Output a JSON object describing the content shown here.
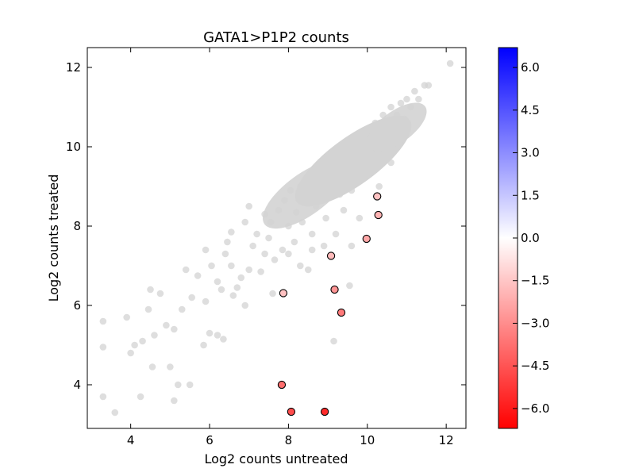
{
  "chart_data": {
    "type": "scatter",
    "title": "GATA1>P1P2 counts",
    "xlabel": "Log2 counts untreated",
    "ylabel": "Log2 counts treated",
    "xlim": [
      2.9,
      12.5
    ],
    "ylim": [
      2.9,
      12.5
    ],
    "xticks": [
      4,
      6,
      8,
      10,
      12
    ],
    "yticks": [
      4,
      6,
      8,
      10,
      12
    ],
    "grid": false,
    "background_color": "#d3d3d3",
    "background_points": [
      [
        3.3,
        5.6
      ],
      [
        3.3,
        4.95
      ],
      [
        3.3,
        3.7
      ],
      [
        3.6,
        3.3
      ],
      [
        3.9,
        5.7
      ],
      [
        4.0,
        4.8
      ],
      [
        4.1,
        5.0
      ],
      [
        4.25,
        3.7
      ],
      [
        4.3,
        5.1
      ],
      [
        4.45,
        5.9
      ],
      [
        4.5,
        6.4
      ],
      [
        4.55,
        4.45
      ],
      [
        4.6,
        5.25
      ],
      [
        4.75,
        6.3
      ],
      [
        4.9,
        5.5
      ],
      [
        5.1,
        5.4
      ],
      [
        5.0,
        4.45
      ],
      [
        5.1,
        3.6
      ],
      [
        5.2,
        4.0
      ],
      [
        5.3,
        5.9
      ],
      [
        5.4,
        6.9
      ],
      [
        5.5,
        4.0
      ],
      [
        5.55,
        6.2
      ],
      [
        5.7,
        6.75
      ],
      [
        5.85,
        5.0
      ],
      [
        5.9,
        6.1
      ],
      [
        6.0,
        5.3
      ],
      [
        6.05,
        7.0
      ],
      [
        6.2,
        5.25
      ],
      [
        6.3,
        6.4
      ],
      [
        6.35,
        5.15
      ],
      [
        6.45,
        7.6
      ],
      [
        6.55,
        7.0
      ],
      [
        6.55,
        7.85
      ],
      [
        6.6,
        6.25
      ],
      [
        6.7,
        6.45
      ],
      [
        6.8,
        6.7
      ],
      [
        6.9,
        6.0
      ],
      [
        7.0,
        6.9
      ],
      [
        7.1,
        7.5
      ],
      [
        7.2,
        7.8
      ],
      [
        7.3,
        6.85
      ],
      [
        7.4,
        7.3
      ],
      [
        7.5,
        7.7
      ],
      [
        7.55,
        8.1
      ],
      [
        7.65,
        7.15
      ],
      [
        7.75,
        8.4
      ],
      [
        7.85,
        7.4
      ],
      [
        7.9,
        8.65
      ],
      [
        8.0,
        8.0
      ],
      [
        8.05,
        8.9
      ],
      [
        8.15,
        7.6
      ],
      [
        8.2,
        8.35
      ],
      [
        8.3,
        9.0
      ],
      [
        8.35,
        8.1
      ],
      [
        8.45,
        8.7
      ],
      [
        8.55,
        9.2
      ],
      [
        8.6,
        7.8
      ],
      [
        8.7,
        8.5
      ],
      [
        8.8,
        9.4
      ],
      [
        8.85,
        8.95
      ],
      [
        8.95,
        8.2
      ],
      [
        9.0,
        9.65
      ],
      [
        9.1,
        9.1
      ],
      [
        9.15,
        5.1
      ],
      [
        9.2,
        9.8
      ],
      [
        9.3,
        8.8
      ],
      [
        9.35,
        9.35
      ],
      [
        9.45,
        10.0
      ],
      [
        9.5,
        9.5
      ],
      [
        9.55,
        6.5
      ],
      [
        9.6,
        8.9
      ],
      [
        9.65,
        10.1
      ],
      [
        9.7,
        9.7
      ],
      [
        9.8,
        10.25
      ],
      [
        9.85,
        9.3
      ],
      [
        9.9,
        9.9
      ],
      [
        10.0,
        10.4
      ],
      [
        10.05,
        9.6
      ],
      [
        10.1,
        10.1
      ],
      [
        10.2,
        10.6
      ],
      [
        10.25,
        9.9
      ],
      [
        10.3,
        10.35
      ],
      [
        10.4,
        10.8
      ],
      [
        10.45,
        10.2
      ],
      [
        10.5,
        10.6
      ],
      [
        10.6,
        11.0
      ],
      [
        10.7,
        10.5
      ],
      [
        10.75,
        10.8
      ],
      [
        10.85,
        11.1
      ],
      [
        10.95,
        10.7
      ],
      [
        11.0,
        11.2
      ],
      [
        11.1,
        11.0
      ],
      [
        11.2,
        11.4
      ],
      [
        11.3,
        11.2
      ],
      [
        11.45,
        11.55
      ],
      [
        11.55,
        11.55
      ],
      [
        12.1,
        12.1
      ],
      [
        7.0,
        8.5
      ],
      [
        6.9,
        8.1
      ],
      [
        7.4,
        8.3
      ],
      [
        6.4,
        7.3
      ],
      [
        6.2,
        6.6
      ],
      [
        5.9,
        7.4
      ],
      [
        8.3,
        7.0
      ],
      [
        8.6,
        7.4
      ],
      [
        9.6,
        7.5
      ],
      [
        9.2,
        7.8
      ],
      [
        8.5,
        6.9
      ],
      [
        8.0,
        7.3
      ],
      [
        9.8,
        8.2
      ],
      [
        10.3,
        9.0
      ],
      [
        10.6,
        9.6
      ],
      [
        9.4,
        8.4
      ],
      [
        8.9,
        7.5
      ],
      [
        7.6,
        6.3
      ]
    ],
    "highlighted_points": [
      {
        "x": 10.25,
        "y": 8.75,
        "value": -1.6
      },
      {
        "x": 10.28,
        "y": 8.28,
        "value": -2.0
      },
      {
        "x": 9.98,
        "y": 7.68,
        "value": -2.3
      },
      {
        "x": 9.08,
        "y": 7.25,
        "value": -1.8
      },
      {
        "x": 9.17,
        "y": 6.4,
        "value": -2.8
      },
      {
        "x": 7.87,
        "y": 6.31,
        "value": -1.6
      },
      {
        "x": 9.34,
        "y": 5.82,
        "value": -3.5
      },
      {
        "x": 7.83,
        "y": 4.0,
        "value": -3.8
      },
      {
        "x": 8.07,
        "y": 3.32,
        "value": -4.7
      },
      {
        "x": 8.92,
        "y": 3.32,
        "value": -5.6
      }
    ],
    "colorbar": {
      "min": -6.7,
      "max": 6.7,
      "ticks": [
        6.0,
        4.5,
        3.0,
        1.5,
        0.0,
        -1.5,
        -3.0,
        -4.5,
        -6.0
      ],
      "tick_labels": [
        "6.0",
        "4.5",
        "3.0",
        "1.5",
        "0.0",
        "−1.5",
        "−3.0",
        "−4.5",
        "−6.0"
      ],
      "colors": {
        "low": "#ff0000",
        "mid": "#ffffff",
        "high": "#0000ff"
      }
    }
  }
}
